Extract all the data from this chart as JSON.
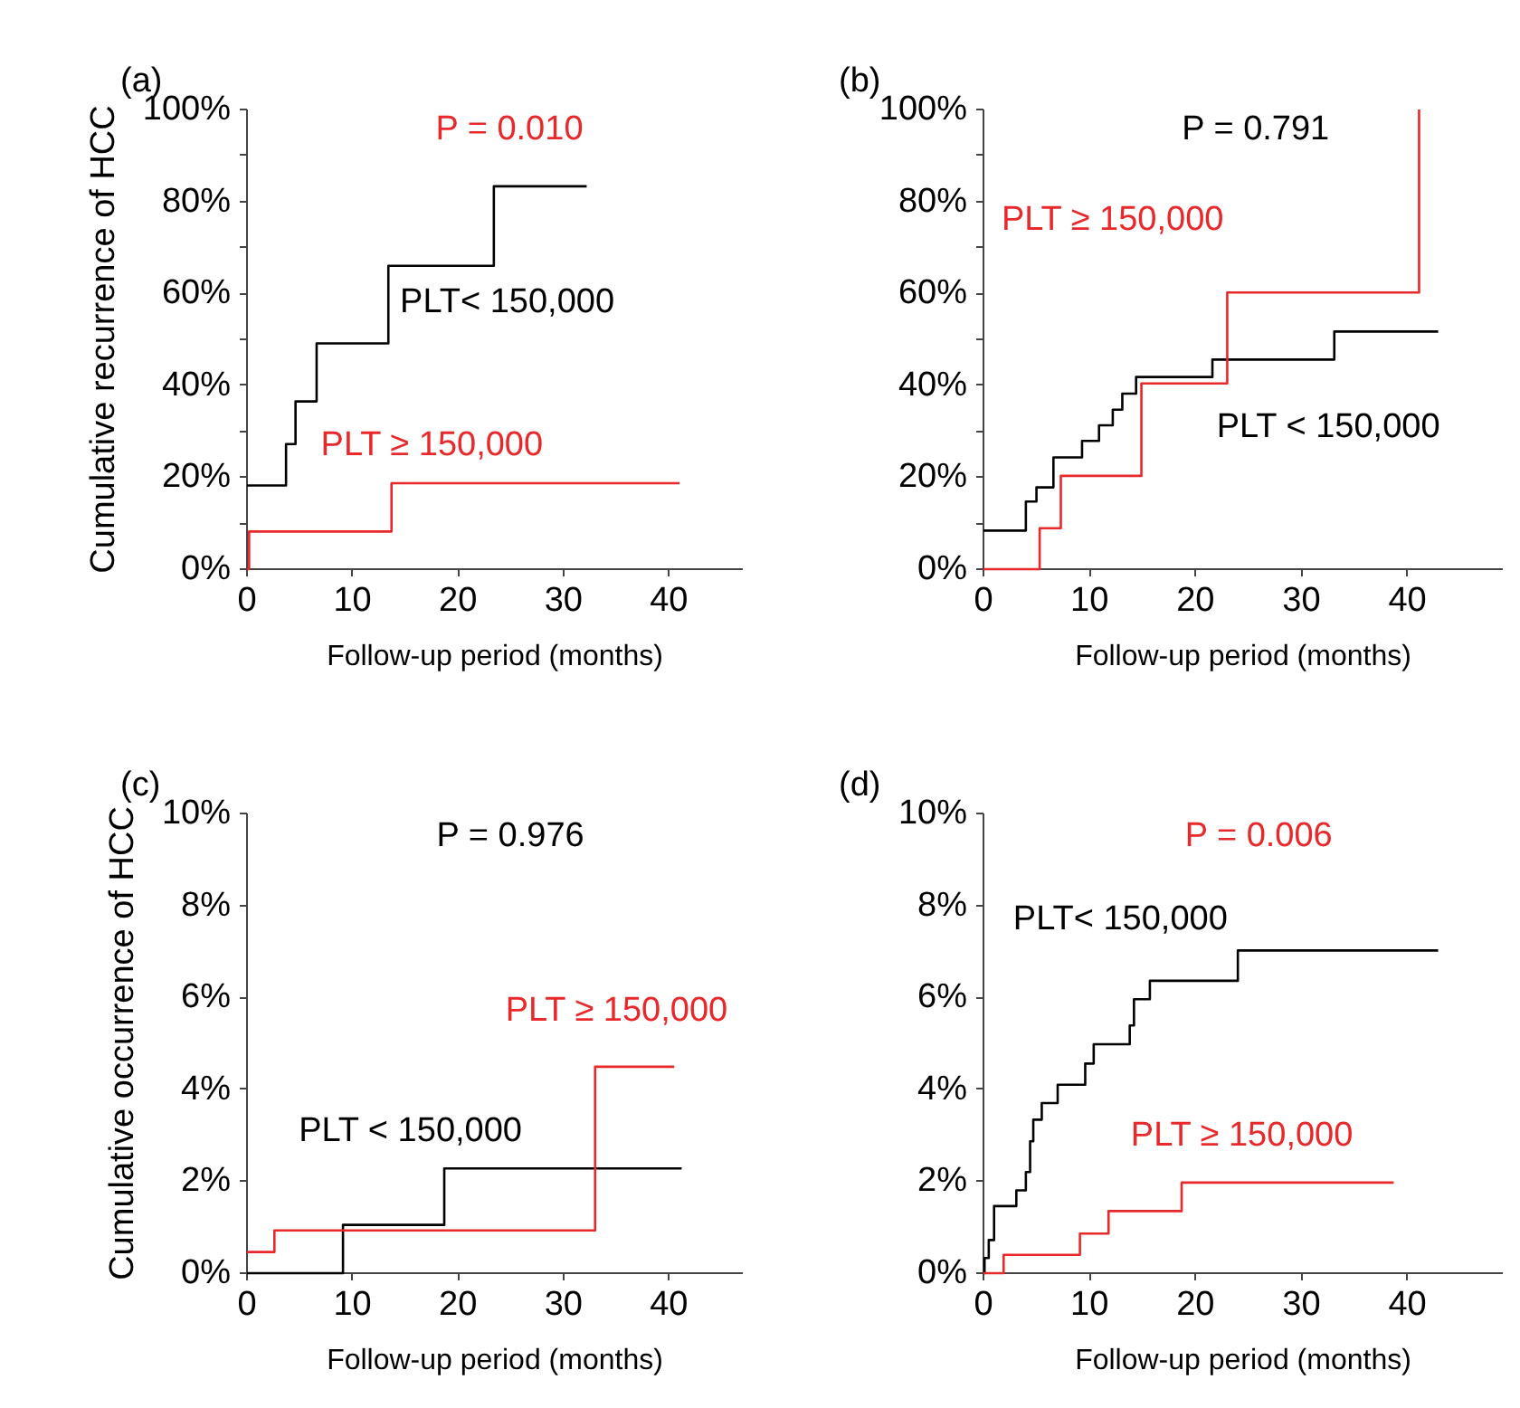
{
  "chart_data": [
    {
      "type": "step",
      "title": "(a)",
      "xlabel": "Follow-up period (months)",
      "ylabel": "Cumulative recurrence of HCC",
      "xlim": [
        0,
        47
      ],
      "ylim": [
        0,
        100
      ],
      "xticks": [
        0,
        10,
        20,
        30,
        40
      ],
      "yticks": [
        {
          "value": 0,
          "label": "0%"
        },
        {
          "value": 10,
          "label": null
        },
        {
          "value": 20,
          "label": "20%"
        },
        {
          "value": 30,
          "label": null
        },
        {
          "value": 40,
          "label": "40%"
        },
        {
          "value": 50,
          "label": null
        },
        {
          "value": 60,
          "label": "60%"
        },
        {
          "value": 70,
          "label": null
        },
        {
          "value": 80,
          "label": "80%"
        },
        {
          "value": 90,
          "label": null
        },
        {
          "value": 100,
          "label": "100%"
        }
      ],
      "grid": false,
      "marker": "none",
      "line_style": "solid",
      "annotations": [
        "P = 0.010"
      ],
      "series": [
        {
          "name": "PLT< 150,000",
          "color": "#000000",
          "x": [
            0,
            3.7,
            4.6,
            6.6,
            13.4,
            23.4,
            32.2
          ],
          "values": [
            18.2,
            27.2,
            36.5,
            49.1,
            66,
            83.3,
            83.3
          ]
        },
        {
          "name": "PLT ≥ 150,000",
          "color": "#e8282a",
          "x": [
            0,
            0.2,
            13.7,
            41
          ],
          "values": [
            0,
            8.2,
            18.7,
            18.7
          ]
        }
      ]
    },
    {
      "type": "step",
      "title": "(b)",
      "xlabel": "Follow-up period (months)",
      "xlim": [
        0,
        49
      ],
      "ylim": [
        0,
        100
      ],
      "xticks": [
        0,
        10,
        20,
        30,
        40
      ],
      "yticks": [
        {
          "value": 0,
          "label": "0%"
        },
        {
          "value": 10,
          "label": null
        },
        {
          "value": 20,
          "label": "20%"
        },
        {
          "value": 30,
          "label": null
        },
        {
          "value": 40,
          "label": "40%"
        },
        {
          "value": 50,
          "label": null
        },
        {
          "value": 60,
          "label": "60%"
        },
        {
          "value": 70,
          "label": null
        },
        {
          "value": 80,
          "label": "80%"
        },
        {
          "value": 90,
          "label": null
        },
        {
          "value": 100,
          "label": "100%"
        }
      ],
      "grid": false,
      "marker": "none",
      "line_style": "solid",
      "annotations": [
        "P = 0.791"
      ],
      "series": [
        {
          "name": "PLT < 150,000",
          "color": "#000000",
          "x": [
            0,
            4,
            5,
            6.6,
            9.3,
            10.9,
            12.2,
            13.1,
            14.4,
            21.6,
            33.1,
            42.9
          ],
          "values": [
            8.4,
            14.7,
            17.8,
            24.3,
            27.9,
            31.3,
            34.7,
            38.2,
            41.8,
            45.6,
            51.7,
            51.7
          ]
        },
        {
          "name": "PLT ≥ 150,000",
          "color": "#e8282a",
          "x": [
            0,
            5.3,
            7.3,
            14.9,
            23,
            41.1
          ],
          "values": [
            0,
            8.9,
            20.3,
            40.4,
            60.2,
            100
          ]
        }
      ]
    },
    {
      "type": "step",
      "title": "(c)",
      "xlabel": "Follow-up period (months)",
      "ylabel": "Cumulative occurrence of HCC",
      "xlim": [
        0,
        47
      ],
      "ylim": [
        0,
        10
      ],
      "xticks": [
        0,
        10,
        20,
        30,
        40
      ],
      "yticks": [
        {
          "value": 0,
          "label": "0%"
        },
        {
          "value": 2,
          "label": "2%"
        },
        {
          "value": 4,
          "label": "4%"
        },
        {
          "value": 6,
          "label": "6%"
        },
        {
          "value": 8,
          "label": "8%"
        },
        {
          "value": 10,
          "label": "10%"
        }
      ],
      "grid": false,
      "marker": "none",
      "line_style": "solid",
      "annotations": [
        "P = 0.976"
      ],
      "series": [
        {
          "name": "PLT < 150,000",
          "color": "#000000",
          "x": [
            0,
            9.1,
            18.7,
            41.2
          ],
          "values": [
            0,
            1.05,
            2.28,
            2.28
          ]
        },
        {
          "name": "PLT ≥ 150,000",
          "color": "#e8282a",
          "x": [
            0,
            2.6,
            33,
            40.5
          ],
          "values": [
            0.46,
            0.93,
            4.49,
            4.49
          ]
        }
      ]
    },
    {
      "type": "step",
      "title": "(d)",
      "xlabel": "Follow-up period (months)",
      "xlim": [
        0,
        49
      ],
      "ylim": [
        0,
        10
      ],
      "xticks": [
        0,
        10,
        20,
        30,
        40
      ],
      "yticks": [
        {
          "value": 0,
          "label": "0%"
        },
        {
          "value": 2,
          "label": "2%"
        },
        {
          "value": 4,
          "label": "4%"
        },
        {
          "value": 6,
          "label": "6%"
        },
        {
          "value": 8,
          "label": "8%"
        },
        {
          "value": 10,
          "label": "10%"
        }
      ],
      "grid": false,
      "marker": "none",
      "line_style": "solid",
      "annotations": [
        "P = 0.006"
      ],
      "series": [
        {
          "name": "PLT< 150,000",
          "color": "#000000",
          "x": [
            0,
            0.1,
            0.5,
            1.0,
            3.1,
            4.0,
            4.4,
            4.7,
            5.5,
            7.0,
            9.6,
            10.4,
            13.8,
            14.2,
            15.7,
            24.0,
            42.9
          ],
          "values": [
            0,
            0.33,
            0.72,
            1.46,
            1.8,
            2.2,
            2.87,
            3.34,
            3.7,
            4.1,
            4.56,
            4.98,
            5.39,
            5.96,
            6.36,
            7.02,
            7.02
          ]
        },
        {
          "name": "PLT  ≥ 150,000",
          "color": "#e8282a",
          "x": [
            0,
            1.9,
            9.1,
            11.8,
            18.7,
            38.7
          ],
          "values": [
            0,
            0.4,
            0.86,
            1.35,
            1.97,
            1.97
          ]
        }
      ]
    }
  ]
}
